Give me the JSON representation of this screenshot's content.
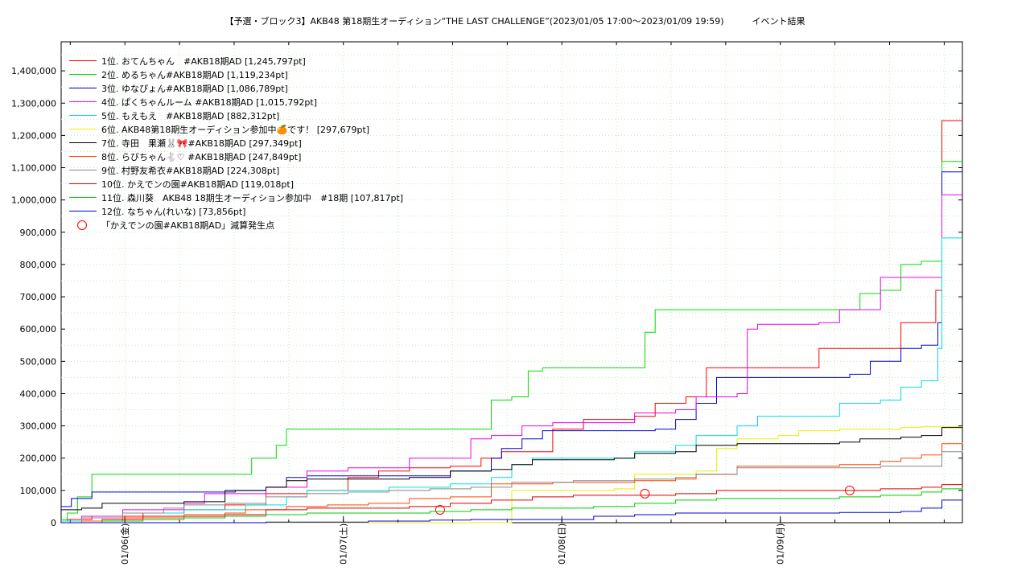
{
  "chart_data": {
    "type": "line",
    "title": "【予選・ブロック3】AKB48 第18期生オーディション“THE LAST CHALLENGE”(2023/01/05 17:00〜2023/01/09 19:59)",
    "subtitle": "イベント結果",
    "xlabel": "",
    "ylabel": "",
    "xlim": [
      "2023/01/05 17:00",
      "2023/01/09 19:59"
    ],
    "ylim": [
      0,
      1490000
    ],
    "y_ticks": [
      0,
      100000,
      200000,
      300000,
      400000,
      500000,
      600000,
      700000,
      800000,
      900000,
      1000000,
      1100000,
      1200000,
      1300000,
      1400000
    ],
    "y_tick_labels": [
      "0",
      "100,000",
      "200,000",
      "300,000",
      "400,000",
      "500,000",
      "600,000",
      "700,000",
      "800,000",
      "900,000",
      "1,000,000",
      "1,100,000",
      "1,200,000",
      "1,300,000",
      "1,400,000"
    ],
    "x_ticks": [
      "01/06(金)",
      "01/07(土)",
      "01/08(日)",
      "01/09(月)"
    ],
    "grid": true,
    "legend_position": "top-left",
    "series": [
      {
        "name": "1位. おてんちゃん　#AKB18期AD [1,245,797pt]",
        "color": "#ff0000",
        "points": [
          [
            0,
            5000
          ],
          [
            0.3,
            10000
          ],
          [
            1.5,
            20000
          ],
          [
            4,
            30000
          ],
          [
            6,
            40000
          ],
          [
            8,
            55000
          ],
          [
            10,
            90000
          ],
          [
            12,
            100000
          ],
          [
            14,
            140000
          ],
          [
            15.5,
            160000
          ],
          [
            17,
            170000
          ],
          [
            19,
            175000
          ],
          [
            20.5,
            200000
          ],
          [
            21.5,
            220000
          ],
          [
            23,
            220000
          ],
          [
            24,
            290000
          ],
          [
            25.5,
            320000
          ],
          [
            27,
            320000
          ],
          [
            28,
            330000
          ],
          [
            29,
            370000
          ],
          [
            30.5,
            390000
          ],
          [
            31.5,
            480000
          ],
          [
            33,
            480000
          ],
          [
            36,
            480000
          ],
          [
            37,
            540000
          ],
          [
            40,
            540000
          ],
          [
            41,
            620000
          ],
          [
            42,
            620000
          ],
          [
            42.7,
            720000
          ],
          [
            43,
            1245797
          ],
          [
            44,
            1245797
          ]
        ]
      },
      {
        "name": "2位. めるちゃん#AKB18期AD [1,119,234pt]",
        "color": "#00dd00",
        "points": [
          [
            0,
            10000
          ],
          [
            0.3,
            30000
          ],
          [
            0.8,
            80000
          ],
          [
            1.5,
            150000
          ],
          [
            9,
            150000
          ],
          [
            9.3,
            200000
          ],
          [
            10.5,
            240000
          ],
          [
            11,
            290000
          ],
          [
            20.5,
            290000
          ],
          [
            21,
            380000
          ],
          [
            22,
            390000
          ],
          [
            22.8,
            470000
          ],
          [
            23.5,
            480000
          ],
          [
            27.5,
            480000
          ],
          [
            28.5,
            590000
          ],
          [
            29,
            660000
          ],
          [
            38,
            660000
          ],
          [
            39,
            710000
          ],
          [
            40,
            720000
          ],
          [
            41,
            800000
          ],
          [
            42,
            810000
          ],
          [
            43,
            1119234
          ],
          [
            44,
            1119234
          ]
        ]
      },
      {
        "name": "3位. ゆなぴょん#AKB18期AD [1,086,789pt]",
        "color": "#0000dd",
        "points": [
          [
            0,
            50000
          ],
          [
            0.5,
            75000
          ],
          [
            1.5,
            95000
          ],
          [
            8,
            95000
          ],
          [
            8.5,
            100000
          ],
          [
            10,
            110000
          ],
          [
            11,
            140000
          ],
          [
            12,
            145000
          ],
          [
            18,
            145000
          ],
          [
            19,
            160000
          ],
          [
            21,
            200000
          ],
          [
            21.5,
            230000
          ],
          [
            22.5,
            260000
          ],
          [
            23.5,
            285000
          ],
          [
            29,
            290000
          ],
          [
            30,
            320000
          ],
          [
            31,
            370000
          ],
          [
            32,
            450000
          ],
          [
            37,
            450000
          ],
          [
            38.5,
            460000
          ],
          [
            39.5,
            500000
          ],
          [
            41,
            540000
          ],
          [
            42,
            550000
          ],
          [
            42.8,
            620000
          ],
          [
            43,
            1086789
          ],
          [
            44,
            1086789
          ]
        ]
      },
      {
        "name": "4位. ぱくちゃんルーム #AKB18期AD [1,015,792pt]",
        "color": "#ee00ee",
        "points": [
          [
            0,
            5000
          ],
          [
            1,
            20000
          ],
          [
            3,
            40000
          ],
          [
            6,
            60000
          ],
          [
            7,
            90000
          ],
          [
            10,
            110000
          ],
          [
            12,
            160000
          ],
          [
            14,
            170000
          ],
          [
            16,
            170000
          ],
          [
            17,
            200000
          ],
          [
            19,
            200000
          ],
          [
            20,
            260000
          ],
          [
            21,
            270000
          ],
          [
            22.5,
            300000
          ],
          [
            24,
            310000
          ],
          [
            27,
            310000
          ],
          [
            28,
            340000
          ],
          [
            30,
            350000
          ],
          [
            31,
            390000
          ],
          [
            33,
            400000
          ],
          [
            33.5,
            600000
          ],
          [
            34,
            615000
          ],
          [
            37,
            620000
          ],
          [
            38,
            660000
          ],
          [
            39.5,
            660000
          ],
          [
            40,
            760000
          ],
          [
            41,
            760000
          ],
          [
            42.5,
            760000
          ],
          [
            43,
            1015792
          ],
          [
            44,
            1015792
          ]
        ]
      },
      {
        "name": "5位. もえもえ　#AKB18期AD [882,312pt]",
        "color": "#00dddd",
        "points": [
          [
            0,
            5000
          ],
          [
            1,
            15000
          ],
          [
            3,
            30000
          ],
          [
            6,
            40000
          ],
          [
            9,
            55000
          ],
          [
            11,
            80000
          ],
          [
            12,
            100000
          ],
          [
            15,
            100000
          ],
          [
            16,
            110000
          ],
          [
            19,
            120000
          ],
          [
            21,
            140000
          ],
          [
            22,
            180000
          ],
          [
            23,
            200000
          ],
          [
            26,
            200000
          ],
          [
            28,
            220000
          ],
          [
            30,
            240000
          ],
          [
            31,
            270000
          ],
          [
            33,
            300000
          ],
          [
            34,
            330000
          ],
          [
            37.5,
            330000
          ],
          [
            38,
            370000
          ],
          [
            40,
            380000
          ],
          [
            41,
            420000
          ],
          [
            42,
            440000
          ],
          [
            42.8,
            540000
          ],
          [
            43,
            882312
          ],
          [
            44,
            882312
          ]
        ]
      },
      {
        "name": "6位. AKB48第18期生オーディション参加中🍊です！ [297,679pt]",
        "color": "#eeee00",
        "points": [
          [
            0,
            0
          ],
          [
            21,
            0
          ],
          [
            22,
            100000
          ],
          [
            27,
            105000
          ],
          [
            28,
            150000
          ],
          [
            31,
            160000
          ],
          [
            32,
            230000
          ],
          [
            33,
            260000
          ],
          [
            35,
            270000
          ],
          [
            36,
            285000
          ],
          [
            38,
            290000
          ],
          [
            40,
            290000
          ],
          [
            41,
            295000
          ],
          [
            42,
            297000
          ],
          [
            44,
            297679
          ]
        ]
      },
      {
        "name": "7位. 寺田　果瀬🐰🎀#AKB18期AD [297,349pt]",
        "color": "#000000",
        "points": [
          [
            0,
            40000
          ],
          [
            1,
            45000
          ],
          [
            2,
            60000
          ],
          [
            4,
            60000
          ],
          [
            6,
            65000
          ],
          [
            8,
            100000
          ],
          [
            10,
            110000
          ],
          [
            11,
            130000
          ],
          [
            12,
            135000
          ],
          [
            15,
            135000
          ],
          [
            17,
            140000
          ],
          [
            19,
            160000
          ],
          [
            21,
            165000
          ],
          [
            22,
            180000
          ],
          [
            23,
            195000
          ],
          [
            27,
            200000
          ],
          [
            28,
            215000
          ],
          [
            30,
            220000
          ],
          [
            31,
            240000
          ],
          [
            33,
            245000
          ],
          [
            36,
            245000
          ],
          [
            38,
            250000
          ],
          [
            39,
            260000
          ],
          [
            41,
            265000
          ],
          [
            42,
            270000
          ],
          [
            43,
            295000
          ],
          [
            44,
            297349
          ]
        ]
      },
      {
        "name": "8位. らびちゃん🐇♡ #AKB18期AD [247,849pt]",
        "color": "#ff4400",
        "points": [
          [
            0,
            0
          ],
          [
            1,
            5000
          ],
          [
            3,
            15000
          ],
          [
            6,
            25000
          ],
          [
            8,
            30000
          ],
          [
            9,
            40000
          ],
          [
            11,
            50000
          ],
          [
            13,
            55000
          ],
          [
            15,
            60000
          ],
          [
            17,
            75000
          ],
          [
            19,
            80000
          ],
          [
            21,
            120000
          ],
          [
            24,
            125000
          ],
          [
            28,
            130000
          ],
          [
            30,
            135000
          ],
          [
            31,
            150000
          ],
          [
            33,
            175000
          ],
          [
            35,
            175000
          ],
          [
            38,
            180000
          ],
          [
            40,
            190000
          ],
          [
            41,
            200000
          ],
          [
            42,
            210000
          ],
          [
            43,
            245000
          ],
          [
            44,
            247849
          ]
        ]
      },
      {
        "name": "9位. 村野友希衣#AKB18期AD [224,308pt]",
        "color": "#888888",
        "points": [
          [
            0,
            0
          ],
          [
            1,
            15000
          ],
          [
            3,
            30000
          ],
          [
            5,
            45000
          ],
          [
            6,
            55000
          ],
          [
            8,
            60000
          ],
          [
            10,
            80000
          ],
          [
            12,
            90000
          ],
          [
            14,
            95000
          ],
          [
            16,
            100000
          ],
          [
            18,
            105000
          ],
          [
            20,
            110000
          ],
          [
            22,
            125000
          ],
          [
            25,
            130000
          ],
          [
            28,
            135000
          ],
          [
            30,
            140000
          ],
          [
            31,
            150000
          ],
          [
            33,
            170000
          ],
          [
            36,
            170000
          ],
          [
            40,
            175000
          ],
          [
            42,
            175000
          ],
          [
            43,
            220000
          ],
          [
            44,
            224308
          ]
        ]
      },
      {
        "name": "10位. かえでンの園#AKB18期AD [119,018pt]",
        "color": "#dd0000",
        "points": [
          [
            0,
            0
          ],
          [
            2,
            10000
          ],
          [
            4,
            20000
          ],
          [
            6,
            20000
          ],
          [
            8,
            25000
          ],
          [
            10,
            40000
          ],
          [
            12,
            45000
          ],
          [
            15,
            45000
          ],
          [
            17,
            50000
          ],
          [
            19,
            60000
          ],
          [
            21,
            70000
          ],
          [
            23,
            80000
          ],
          [
            25,
            85000
          ],
          [
            28,
            85000
          ],
          [
            30,
            90000
          ],
          [
            32,
            100000
          ],
          [
            35,
            100000
          ],
          [
            38,
            100000
          ],
          [
            40,
            105000
          ],
          [
            42,
            110000
          ],
          [
            43,
            118000
          ],
          [
            44,
            119018
          ]
        ]
      },
      {
        "name": "11位. 森川葵　AKB48 18期生オーディション参加中　#18期 [107,817pt]",
        "color": "#00cc00",
        "points": [
          [
            0,
            0
          ],
          [
            2,
            5000
          ],
          [
            4,
            10000
          ],
          [
            6,
            15000
          ],
          [
            8,
            20000
          ],
          [
            10,
            25000
          ],
          [
            12,
            30000
          ],
          [
            15,
            30000
          ],
          [
            18,
            35000
          ],
          [
            20,
            40000
          ],
          [
            22,
            45000
          ],
          [
            24,
            45000
          ],
          [
            26,
            50000
          ],
          [
            28,
            60000
          ],
          [
            30,
            70000
          ],
          [
            32,
            75000
          ],
          [
            35,
            75000
          ],
          [
            38,
            80000
          ],
          [
            40,
            85000
          ],
          [
            42,
            95000
          ],
          [
            43,
            105000
          ],
          [
            44,
            107817
          ]
        ]
      },
      {
        "name": "12位. なちゃん(れいな) [73,856pt]",
        "color": "#0000cc",
        "points": [
          [
            0,
            0
          ],
          [
            5,
            0
          ],
          [
            10,
            2000
          ],
          [
            15,
            5000
          ],
          [
            18,
            8000
          ],
          [
            20,
            10000
          ],
          [
            25,
            10000
          ],
          [
            26,
            20000
          ],
          [
            28,
            25000
          ],
          [
            30,
            30000
          ],
          [
            34,
            30000
          ],
          [
            38,
            32000
          ],
          [
            41,
            35000
          ],
          [
            42,
            45000
          ],
          [
            43,
            70000
          ],
          [
            44,
            73856
          ]
        ]
      }
    ],
    "markers": [
      {
        "label": "「かえでンの園#AKB18期AD」減算発生点",
        "color": "#ff0000",
        "points": [
          [
            18.5,
            40000
          ],
          [
            28.5,
            90000
          ],
          [
            38.5,
            100000
          ]
        ]
      }
    ]
  }
}
